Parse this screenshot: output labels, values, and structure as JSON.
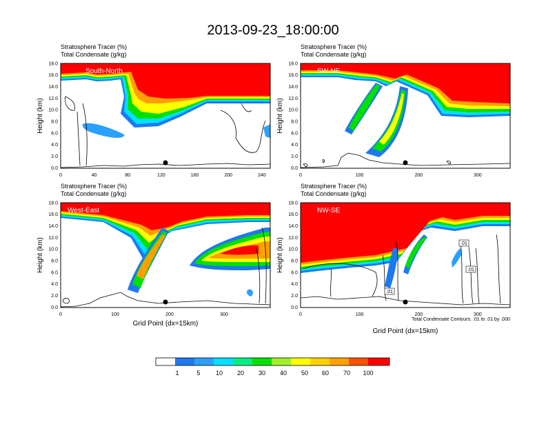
{
  "title": "2013-09-23_18:00:00",
  "colors": {
    "white": "#ffffff",
    "c1": "#1e78f0",
    "c5": "#2aa0ff",
    "c10": "#00e0ff",
    "c20": "#00ef80",
    "c30": "#00e000",
    "c40": "#a0f028",
    "c50": "#ffff00",
    "c60": "#ffd000",
    "c70": "#ffa000",
    "c80": "#ff5000",
    "c100": "#ff0000",
    "line": "#000000"
  },
  "colorbar": {
    "levels": [
      "1",
      "5",
      "10",
      "20",
      "30",
      "40",
      "50",
      "60",
      "70",
      "100"
    ],
    "swatches": [
      "#ffffff",
      "#1e78f0",
      "#2aa0ff",
      "#00e0ff",
      "#00ef80",
      "#00e000",
      "#a0f028",
      "#ffff00",
      "#ffd000",
      "#ffa000",
      "#ff5000",
      "#ff0000"
    ]
  },
  "xlabel": "Grid Point (dx=15km)",
  "contour_note": "Total Condensate Contours: .01 to .01 by .000",
  "chart_data": [
    {
      "type": "heatmap",
      "label": "South-North",
      "subtitle_line1": "Stratosphere Tracer   (%)",
      "subtitle_line2": "Total Condensate   (g/kg)",
      "ylabel": "Height (km)",
      "xlim": [
        0,
        250
      ],
      "ylim": [
        0,
        18
      ],
      "xticks": [
        "0",
        "40",
        "80",
        "120",
        "160",
        "200",
        "240"
      ],
      "xtick_values": [
        0,
        40,
        80,
        120,
        160,
        200,
        240
      ],
      "yticks": [
        "0.0",
        "2.0",
        "4.0",
        "6.0",
        "8.0",
        "10.0",
        "12.0",
        "14.0",
        "16.0",
        "18.0"
      ],
      "marker": [
        125,
        1.0
      ]
    },
    {
      "type": "heatmap",
      "label": "SW-NE",
      "subtitle_line1": "Stratosphere Tracer   (%)",
      "subtitle_line2": "Total Condensate   (g/kg)",
      "ylabel": "Height (km)",
      "xlim": [
        0,
        355
      ],
      "ylim": [
        0,
        18
      ],
      "xticks": [
        "0",
        "100",
        "200",
        "300"
      ],
      "xtick_values": [
        0,
        100,
        200,
        300
      ],
      "yticks": [
        "0.0",
        "2.0",
        "4.0",
        "6.0",
        "8.0",
        "10.0",
        "12.0",
        "14.0",
        "16.0",
        "18.0"
      ],
      "marker": [
        178,
        1.0
      ]
    },
    {
      "type": "heatmap",
      "label": "West-East",
      "subtitle_line1": "Stratosphere Tracer   (%)",
      "subtitle_line2": "Total Condensate   (g/kg)",
      "ylabel": "Height (km)",
      "xlim": [
        0,
        385
      ],
      "ylim": [
        0,
        18
      ],
      "xticks": [
        "0",
        "100",
        "200",
        "300"
      ],
      "xtick_values": [
        0,
        100,
        200,
        300
      ],
      "yticks": [
        "0.0",
        "2.0",
        "4.0",
        "6.0",
        "8.0",
        "10.0",
        "12.0",
        "14.0",
        "16.0",
        "18.0"
      ],
      "marker": [
        190,
        1.0
      ]
    },
    {
      "type": "heatmap",
      "label": "NW-SE",
      "subtitle_line1": "Stratosphere Tracer   (%)",
      "subtitle_line2": "Total Condensate   (g/kg)",
      "ylabel": "Height (km)",
      "xlim": [
        0,
        355
      ],
      "ylim": [
        0,
        18
      ],
      "xticks": [
        "0",
        "100",
        "200",
        "300"
      ],
      "xtick_values": [
        0,
        100,
        200,
        300
      ],
      "yticks": [
        "0.0",
        "2.0",
        "4.0",
        "6.0",
        "8.0",
        "10.0",
        "12.0",
        "14.0",
        "16.0",
        "18.0"
      ],
      "marker": [
        178,
        1.0
      ],
      "contour_labels": [
        ".01",
        ".01",
        ".01"
      ]
    }
  ]
}
